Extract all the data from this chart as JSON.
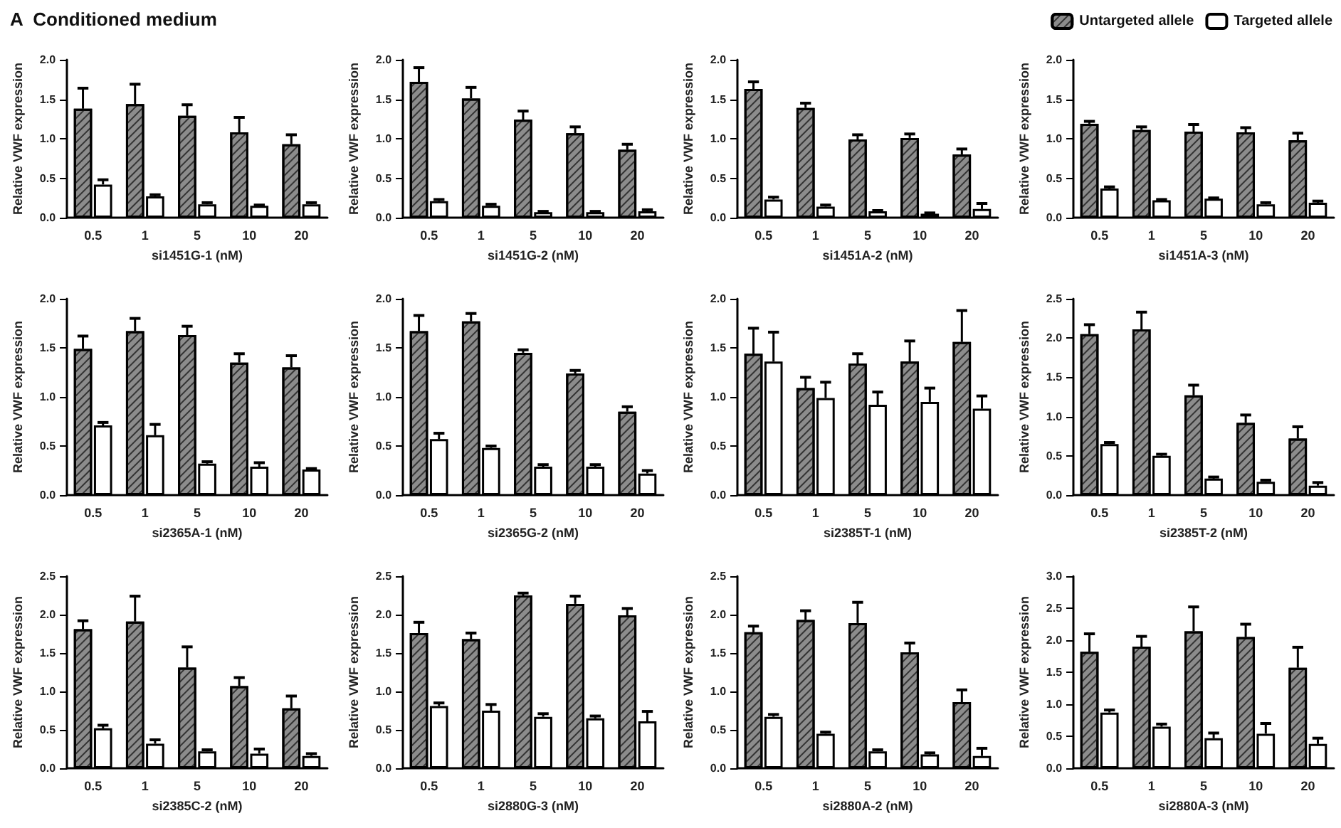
{
  "chart_data": [
    {
      "type": "bar",
      "title": "A  Conditioned medium",
      "xlabel": "si1451G-1 (nM)",
      "ylabel": "Relative VWF expression",
      "categories": [
        "0.5",
        "1",
        "5",
        "10",
        "20"
      ],
      "ylim": [
        0,
        2
      ],
      "yticks": [
        {
          "value": 0,
          "label": "0.0"
        },
        0.5,
        {
          "value": 1,
          "label": "1.0"
        },
        1.5,
        {
          "value": 2,
          "label": "2.0"
        }
      ],
      "series": [
        {
          "color": "#8c8c8c",
          "values": [
            1.38,
            1.44,
            1.29,
            1.08,
            0.93
          ],
          "errors": [
            0.26,
            0.25,
            0.14,
            0.19,
            0.12
          ]
        },
        {
          "color": "#ffffff",
          "values": [
            0.42,
            0.27,
            0.17,
            0.15,
            0.17
          ],
          "errors": [
            0.06,
            0.02,
            0.02,
            0.01,
            0.02
          ]
        }
      ]
    },
    {
      "type": "bar",
      "xlabel": "si1451G-2 (nM)",
      "ylabel": "Relative VWF expression",
      "categories": [
        "0.5",
        "1",
        "5",
        "10",
        "20"
      ],
      "ylim": [
        0,
        2
      ],
      "yticks": [
        {
          "value": 0,
          "label": "0.0"
        },
        0.5,
        {
          "value": 1,
          "label": "1.0"
        },
        1.5,
        {
          "value": 2,
          "label": "2.0"
        }
      ],
      "series": [
        {
          "color": "#8c8c8c",
          "values": [
            1.72,
            1.51,
            1.24,
            1.07,
            0.86
          ],
          "errors": [
            0.18,
            0.14,
            0.11,
            0.08,
            0.07
          ]
        },
        {
          "color": "#ffffff",
          "values": [
            0.21,
            0.15,
            0.07,
            0.07,
            0.08
          ],
          "errors": [
            0.02,
            0.02,
            0.01,
            0.01,
            0.02
          ]
        }
      ]
    },
    {
      "type": "bar",
      "xlabel": "si1451A-2 (nM)",
      "ylabel": "Relative VWF expression",
      "categories": [
        "0.5",
        "1",
        "5",
        "10",
        "20"
      ],
      "ylim": [
        0,
        2
      ],
      "yticks": [
        {
          "value": 0,
          "label": "0.0"
        },
        0.5,
        {
          "value": 1,
          "label": "1.0"
        },
        1.5,
        {
          "value": 2,
          "label": "2.0"
        }
      ],
      "series": [
        {
          "color": "#8c8c8c",
          "values": [
            1.63,
            1.39,
            0.99,
            1.01,
            0.8
          ],
          "errors": [
            0.09,
            0.06,
            0.06,
            0.05,
            0.07
          ]
        },
        {
          "color": "#ffffff",
          "values": [
            0.23,
            0.14,
            0.08,
            0.05,
            0.11
          ],
          "errors": [
            0.03,
            0.02,
            0.01,
            0.01,
            0.07
          ]
        }
      ]
    },
    {
      "type": "bar",
      "xlabel": "si1451A-3 (nM)",
      "ylabel": "Relative VWF expression",
      "categories": [
        "0.5",
        "1",
        "5",
        "10",
        "20"
      ],
      "ylim": [
        0,
        2
      ],
      "yticks": [
        {
          "value": 0,
          "label": "0.0"
        },
        0.5,
        {
          "value": 1,
          "label": "1.0"
        },
        1.5,
        {
          "value": 2,
          "label": "2.0"
        }
      ],
      "legend": "top right",
      "series": [
        {
          "name": "Untargeted allele",
          "color": "#8c8c8c",
          "values": [
            1.19,
            1.11,
            1.09,
            1.08,
            0.98
          ],
          "errors": [
            0.03,
            0.04,
            0.09,
            0.06,
            0.09
          ]
        },
        {
          "name": "Targeted allele",
          "color": "#ffffff",
          "values": [
            0.37,
            0.22,
            0.24,
            0.17,
            0.19
          ],
          "errors": [
            0.02,
            0.01,
            0.01,
            0.02,
            0.02
          ]
        }
      ]
    },
    {
      "type": "bar",
      "xlabel": "si2365A-1 (nM)",
      "ylabel": "Relative VWF expression",
      "categories": [
        "0.5",
        "1",
        "5",
        "10",
        "20"
      ],
      "ylim": [
        0,
        2
      ],
      "yticks": [
        {
          "value": 0,
          "label": "0.0"
        },
        0.5,
        {
          "value": 1,
          "label": "1.0"
        },
        1.5,
        {
          "value": 2,
          "label": "2.0"
        }
      ],
      "series": [
        {
          "color": "#8c8c8c",
          "values": [
            1.49,
            1.67,
            1.63,
            1.35,
            1.3
          ],
          "errors": [
            0.13,
            0.13,
            0.09,
            0.09,
            0.12
          ]
        },
        {
          "color": "#ffffff",
          "values": [
            0.71,
            0.61,
            0.32,
            0.29,
            0.26
          ],
          "errors": [
            0.03,
            0.11,
            0.02,
            0.04,
            0.01
          ]
        }
      ]
    },
    {
      "type": "bar",
      "xlabel": "si2365G-2 (nM)",
      "ylabel": "Relative VWF expression",
      "categories": [
        "0.5",
        "1",
        "5",
        "10",
        "20"
      ],
      "ylim": [
        0,
        2
      ],
      "yticks": [
        {
          "value": 0,
          "label": "0.0"
        },
        0.5,
        {
          "value": 1,
          "label": "1.0"
        },
        1.5,
        {
          "value": 2,
          "label": "2.0"
        }
      ],
      "series": [
        {
          "color": "#8c8c8c",
          "values": [
            1.67,
            1.77,
            1.45,
            1.24,
            0.85
          ],
          "errors": [
            0.16,
            0.08,
            0.03,
            0.03,
            0.05
          ]
        },
        {
          "color": "#ffffff",
          "values": [
            0.57,
            0.48,
            0.29,
            0.29,
            0.22
          ],
          "errors": [
            0.06,
            0.02,
            0.02,
            0.02,
            0.03
          ]
        }
      ]
    },
    {
      "type": "bar",
      "xlabel": "si2385T-1 (nM)",
      "ylabel": "Relative VWF expression",
      "categories": [
        "0.5",
        "1",
        "5",
        "10",
        "20"
      ],
      "ylim": [
        0,
        2
      ],
      "yticks": [
        {
          "value": 0,
          "label": "0.0"
        },
        0.5,
        {
          "value": 1,
          "label": "1.0"
        },
        1.5,
        {
          "value": 2,
          "label": "2.0"
        }
      ],
      "series": [
        {
          "color": "#8c8c8c",
          "values": [
            1.44,
            1.09,
            1.34,
            1.36,
            1.56
          ],
          "errors": [
            0.26,
            0.11,
            0.1,
            0.21,
            0.32
          ]
        },
        {
          "color": "#ffffff",
          "values": [
            1.36,
            0.99,
            0.92,
            0.95,
            0.88
          ],
          "errors": [
            0.3,
            0.16,
            0.13,
            0.14,
            0.13
          ]
        }
      ]
    },
    {
      "type": "bar",
      "xlabel": "si2385T-2 (nM)",
      "ylabel": "Relative VWF expression",
      "categories": [
        "0.5",
        "1",
        "5",
        "10",
        "20"
      ],
      "ylim": [
        0,
        2.5
      ],
      "yticks": [
        {
          "value": 0,
          "label": "0.0"
        },
        0.5,
        {
          "value": 1,
          "label": "1.0"
        },
        1.5,
        {
          "value": 2,
          "label": "2.0"
        },
        2.5
      ],
      "series": [
        {
          "color": "#8c8c8c",
          "values": [
            2.05,
            2.11,
            1.27,
            0.92,
            0.72
          ],
          "errors": [
            0.12,
            0.22,
            0.13,
            0.1,
            0.15
          ]
        },
        {
          "color": "#ffffff",
          "values": [
            0.65,
            0.5,
            0.21,
            0.17,
            0.12
          ],
          "errors": [
            0.02,
            0.02,
            0.02,
            0.02,
            0.04
          ]
        }
      ]
    },
    {
      "type": "bar",
      "xlabel": "si2385C-2 (nM)",
      "ylabel": "Relative VWF expression",
      "categories": [
        "0.5",
        "1",
        "5",
        "10",
        "20"
      ],
      "ylim": [
        0,
        2.5
      ],
      "yticks": [
        {
          "value": 0,
          "label": "0.0"
        },
        0.5,
        {
          "value": 1,
          "label": "1.0"
        },
        1.5,
        {
          "value": 2,
          "label": "2.0"
        },
        2.5
      ],
      "series": [
        {
          "color": "#8c8c8c",
          "values": [
            1.81,
            1.91,
            1.31,
            1.07,
            0.78
          ],
          "errors": [
            0.11,
            0.33,
            0.27,
            0.11,
            0.16
          ]
        },
        {
          "color": "#ffffff",
          "values": [
            0.52,
            0.32,
            0.22,
            0.19,
            0.16
          ],
          "errors": [
            0.04,
            0.05,
            0.02,
            0.06,
            0.03
          ]
        }
      ]
    },
    {
      "type": "bar",
      "xlabel": "si2880G-3 (nM)",
      "ylabel": "Relative VWF expression",
      "categories": [
        "0.5",
        "1",
        "5",
        "10",
        "20"
      ],
      "ylim": [
        0,
        2.5
      ],
      "yticks": [
        {
          "value": 0,
          "label": "0.0"
        },
        0.5,
        {
          "value": 1,
          "label": "1.0"
        },
        1.5,
        {
          "value": 2,
          "label": "2.0"
        },
        2.5
      ],
      "series": [
        {
          "color": "#8c8c8c",
          "values": [
            1.76,
            1.68,
            2.25,
            2.14,
            1.99
          ],
          "errors": [
            0.14,
            0.08,
            0.03,
            0.1,
            0.09
          ]
        },
        {
          "color": "#ffffff",
          "values": [
            0.81,
            0.75,
            0.67,
            0.65,
            0.61
          ],
          "errors": [
            0.04,
            0.08,
            0.04,
            0.03,
            0.13
          ]
        }
      ]
    },
    {
      "type": "bar",
      "xlabel": "si2880A-2 (nM)",
      "ylabel": "Relative VWF expression",
      "categories": [
        "0.5",
        "1",
        "5",
        "10",
        "20"
      ],
      "ylim": [
        0,
        2.5
      ],
      "yticks": [
        {
          "value": 0,
          "label": "0.0"
        },
        0.5,
        {
          "value": 1,
          "label": "1.0"
        },
        1.5,
        {
          "value": 2,
          "label": "2.0"
        },
        2.5
      ],
      "series": [
        {
          "color": "#8c8c8c",
          "values": [
            1.77,
            1.93,
            1.89,
            1.51,
            0.86
          ],
          "errors": [
            0.08,
            0.12,
            0.27,
            0.12,
            0.16
          ]
        },
        {
          "color": "#ffffff",
          "values": [
            0.67,
            0.45,
            0.22,
            0.18,
            0.16
          ],
          "errors": [
            0.03,
            0.02,
            0.02,
            0.02,
            0.1
          ]
        }
      ]
    },
    {
      "type": "bar",
      "xlabel": "si2880A-3 (nM)",
      "ylabel": "Relative VWF expression",
      "categories": [
        "0.5",
        "1",
        "5",
        "10",
        "20"
      ],
      "ylim": [
        0,
        3
      ],
      "yticks": [
        {
          "value": 0,
          "label": "0.0"
        },
        0.5,
        {
          "value": 1,
          "label": "1.0"
        },
        1.5,
        {
          "value": 2,
          "label": "2.0"
        },
        2.5,
        {
          "value": 3,
          "label": "3.0"
        }
      ],
      "series": [
        {
          "color": "#8c8c8c",
          "values": [
            1.82,
            1.9,
            2.14,
            2.05,
            1.57
          ],
          "errors": [
            0.28,
            0.16,
            0.38,
            0.2,
            0.32
          ]
        },
        {
          "color": "#ffffff",
          "values": [
            0.87,
            0.65,
            0.47,
            0.54,
            0.38
          ],
          "errors": [
            0.04,
            0.04,
            0.08,
            0.16,
            0.09
          ]
        }
      ]
    }
  ]
}
